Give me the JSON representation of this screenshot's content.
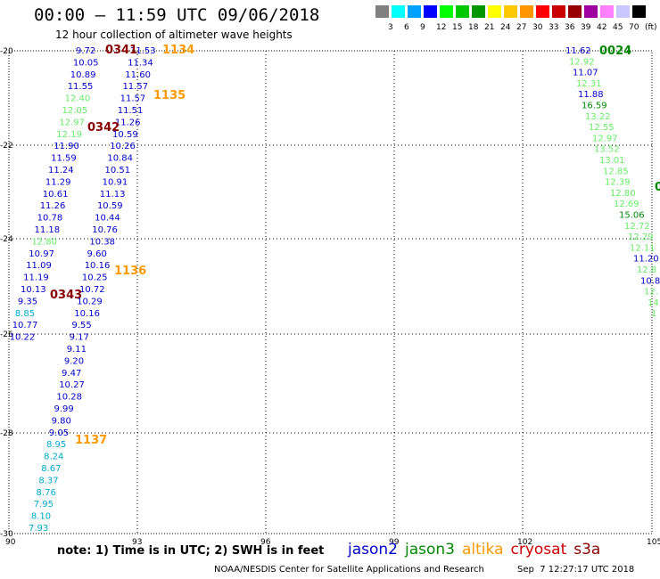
{
  "header": {
    "title": "00:00 – 11:59 UTC 09/06/2018",
    "subtitle": "12 hour collection of altimeter wave heights"
  },
  "colorbar": {
    "unit": "(ft)",
    "colors": [
      "#808080",
      "#00ffff",
      "#00a0ff",
      "#0000ff",
      "#00ff00",
      "#00c800",
      "#009600",
      "#ffff00",
      "#ffc800",
      "#ff9600",
      "#ff0000",
      "#c80000",
      "#960000",
      "#a000a0",
      "#ff80ff",
      "#c8c8ff",
      "#000000"
    ],
    "labels": [
      "3",
      "6",
      "9",
      "12",
      "15",
      "18",
      "21",
      "24",
      "27",
      "30",
      "33",
      "36",
      "39",
      "42",
      "45",
      "70"
    ]
  },
  "axes": {
    "x_ticks": [
      "90",
      "93",
      "96",
      "99",
      "102",
      "105"
    ],
    "y_ticks": [
      "-20",
      "-22",
      "-24",
      "-26",
      "-28",
      "-30"
    ]
  },
  "colors": {
    "jason2": "#0000cc",
    "jason3": "#008800",
    "altika": "#ff9900",
    "cryosat": "#cc0000",
    "s3a": "#880000",
    "light_green": "#66ee66",
    "cyan": "#00aacc"
  },
  "track_a": [
    {
      "v": "9.72",
      "c": "jason2"
    },
    {
      "v": "10.05",
      "c": "jason2"
    },
    {
      "v": "10.89",
      "c": "jason2"
    },
    {
      "v": "11.55",
      "c": "jason2"
    },
    {
      "v": "12.40",
      "c": "light_green"
    },
    {
      "v": "12.05",
      "c": "light_green"
    },
    {
      "v": "12.97",
      "c": "light_green"
    },
    {
      "v": "12.19",
      "c": "light_green"
    },
    {
      "v": "11.90",
      "c": "jason2"
    },
    {
      "v": "11.59",
      "c": "jason2"
    },
    {
      "v": "11.24",
      "c": "jason2"
    },
    {
      "v": "11.29",
      "c": "jason2"
    },
    {
      "v": "10.61",
      "c": "jason2"
    },
    {
      "v": "11.26",
      "c": "jason2"
    },
    {
      "v": "10.78",
      "c": "jason2"
    },
    {
      "v": "11.18",
      "c": "jason2"
    },
    {
      "v": "12.80",
      "c": "light_green"
    },
    {
      "v": "10.97",
      "c": "jason2"
    },
    {
      "v": "11.09",
      "c": "jason2"
    },
    {
      "v": "11.19",
      "c": "jason2"
    },
    {
      "v": "10.13",
      "c": "jason2"
    },
    {
      "v": "9.35",
      "c": "jason2"
    },
    {
      "v": "8.85",
      "c": "cyan"
    },
    {
      "v": "10.77",
      "c": "jason2"
    },
    {
      "v": "10.22",
      "c": "jason2"
    }
  ],
  "track_b": [
    {
      "v": "11.53",
      "c": "jason2"
    },
    {
      "v": "11.34",
      "c": "jason2"
    },
    {
      "v": "11.60",
      "c": "jason2"
    },
    {
      "v": "11.57",
      "c": "jason2"
    },
    {
      "v": "11.57",
      "c": "jason2"
    },
    {
      "v": "11.51",
      "c": "jason2"
    },
    {
      "v": "11.26",
      "c": "jason2"
    },
    {
      "v": "10.59",
      "c": "jason2"
    },
    {
      "v": "10.26",
      "c": "jason2"
    },
    {
      "v": "10.84",
      "c": "jason2"
    },
    {
      "v": "10.51",
      "c": "jason2"
    },
    {
      "v": "10.91",
      "c": "jason2"
    },
    {
      "v": "11.13",
      "c": "jason2"
    },
    {
      "v": "10.59",
      "c": "jason2"
    },
    {
      "v": "10.44",
      "c": "jason2"
    },
    {
      "v": "10.76",
      "c": "jason2"
    },
    {
      "v": "10.38",
      "c": "jason2"
    },
    {
      "v": "9.60",
      "c": "jason2"
    },
    {
      "v": "10.16",
      "c": "jason2"
    },
    {
      "v": "10.25",
      "c": "jason2"
    },
    {
      "v": "10.72",
      "c": "jason2"
    },
    {
      "v": "10.29",
      "c": "jason2"
    },
    {
      "v": "10.16",
      "c": "jason2"
    },
    {
      "v": "9.55",
      "c": "jason2"
    },
    {
      "v": "9.17",
      "c": "jason2"
    },
    {
      "v": "9.11",
      "c": "jason2"
    },
    {
      "v": "9.20",
      "c": "jason2"
    },
    {
      "v": "9.47",
      "c": "jason2"
    },
    {
      "v": "10.27",
      "c": "jason2"
    },
    {
      "v": "10.28",
      "c": "jason2"
    },
    {
      "v": "9.99",
      "c": "jason2"
    },
    {
      "v": "9.80",
      "c": "jason2"
    },
    {
      "v": "9.05",
      "c": "jason2"
    },
    {
      "v": "8.95",
      "c": "cyan"
    },
    {
      "v": "8.24",
      "c": "cyan"
    },
    {
      "v": "8.67",
      "c": "cyan"
    },
    {
      "v": "8.37",
      "c": "cyan"
    },
    {
      "v": "8.76",
      "c": "cyan"
    },
    {
      "v": "7.95",
      "c": "cyan"
    },
    {
      "v": "8.10",
      "c": "cyan"
    },
    {
      "v": "7.93",
      "c": "cyan"
    }
  ],
  "track_c": [
    {
      "v": "11.62",
      "c": "jason2"
    },
    {
      "v": "12.92",
      "c": "light_green"
    },
    {
      "v": "11.07",
      "c": "jason2"
    },
    {
      "v": "12.31",
      "c": "light_green"
    },
    {
      "v": "11.88",
      "c": "jason2"
    },
    {
      "v": "16.59",
      "c": "jason3"
    },
    {
      "v": "13.22",
      "c": "light_green"
    },
    {
      "v": "12.55",
      "c": "light_green"
    },
    {
      "v": "12.97",
      "c": "light_green"
    },
    {
      "v": "13.52",
      "c": "light_green"
    },
    {
      "v": "13.01",
      "c": "light_green"
    },
    {
      "v": "12.85",
      "c": "light_green"
    },
    {
      "v": "12.39",
      "c": "light_green"
    },
    {
      "v": "12.80",
      "c": "light_green"
    },
    {
      "v": "12.69",
      "c": "light_green"
    },
    {
      "v": "15.06",
      "c": "jason3"
    },
    {
      "v": "12.72",
      "c": "light_green"
    },
    {
      "v": "12.29",
      "c": "light_green"
    },
    {
      "v": "12.11",
      "c": "light_green"
    },
    {
      "v": "11.20",
      "c": "jason2"
    },
    {
      "v": "12.8",
      "c": "light_green"
    },
    {
      "v": "10.8",
      "c": "jason2"
    },
    {
      "v": "12.",
      "c": "light_green"
    },
    {
      "v": "14",
      "c": "light_green"
    },
    {
      "v": "1",
      "c": "light_green"
    }
  ],
  "time_labels": [
    {
      "t": "0341",
      "c": "s3a"
    },
    {
      "t": "1134",
      "c": "altika"
    },
    {
      "t": "1135",
      "c": "altika"
    },
    {
      "t": "0342",
      "c": "s3a"
    },
    {
      "t": "1136",
      "c": "altika"
    },
    {
      "t": "0343",
      "c": "s3a"
    },
    {
      "t": "1137",
      "c": "altika"
    },
    {
      "t": "0024",
      "c": "jason3"
    },
    {
      "t": "0",
      "c": "jason3"
    }
  ],
  "footer": {
    "note": "note:  1) Time is in UTC;  2) SWH is in feet",
    "legend": [
      {
        "name": "jason2",
        "c": "jason2"
      },
      {
        "name": "jason3",
        "c": "jason3"
      },
      {
        "name": "altika",
        "c": "altika"
      },
      {
        "name": "cryosat",
        "c": "cryosat"
      },
      {
        "name": "s3a",
        "c": "s3a"
      }
    ],
    "credit": "NOAA/NESDIS Center for Satellite Applications and Research",
    "timestamp": "Sep  7 12:27:17 UTC 2018"
  }
}
